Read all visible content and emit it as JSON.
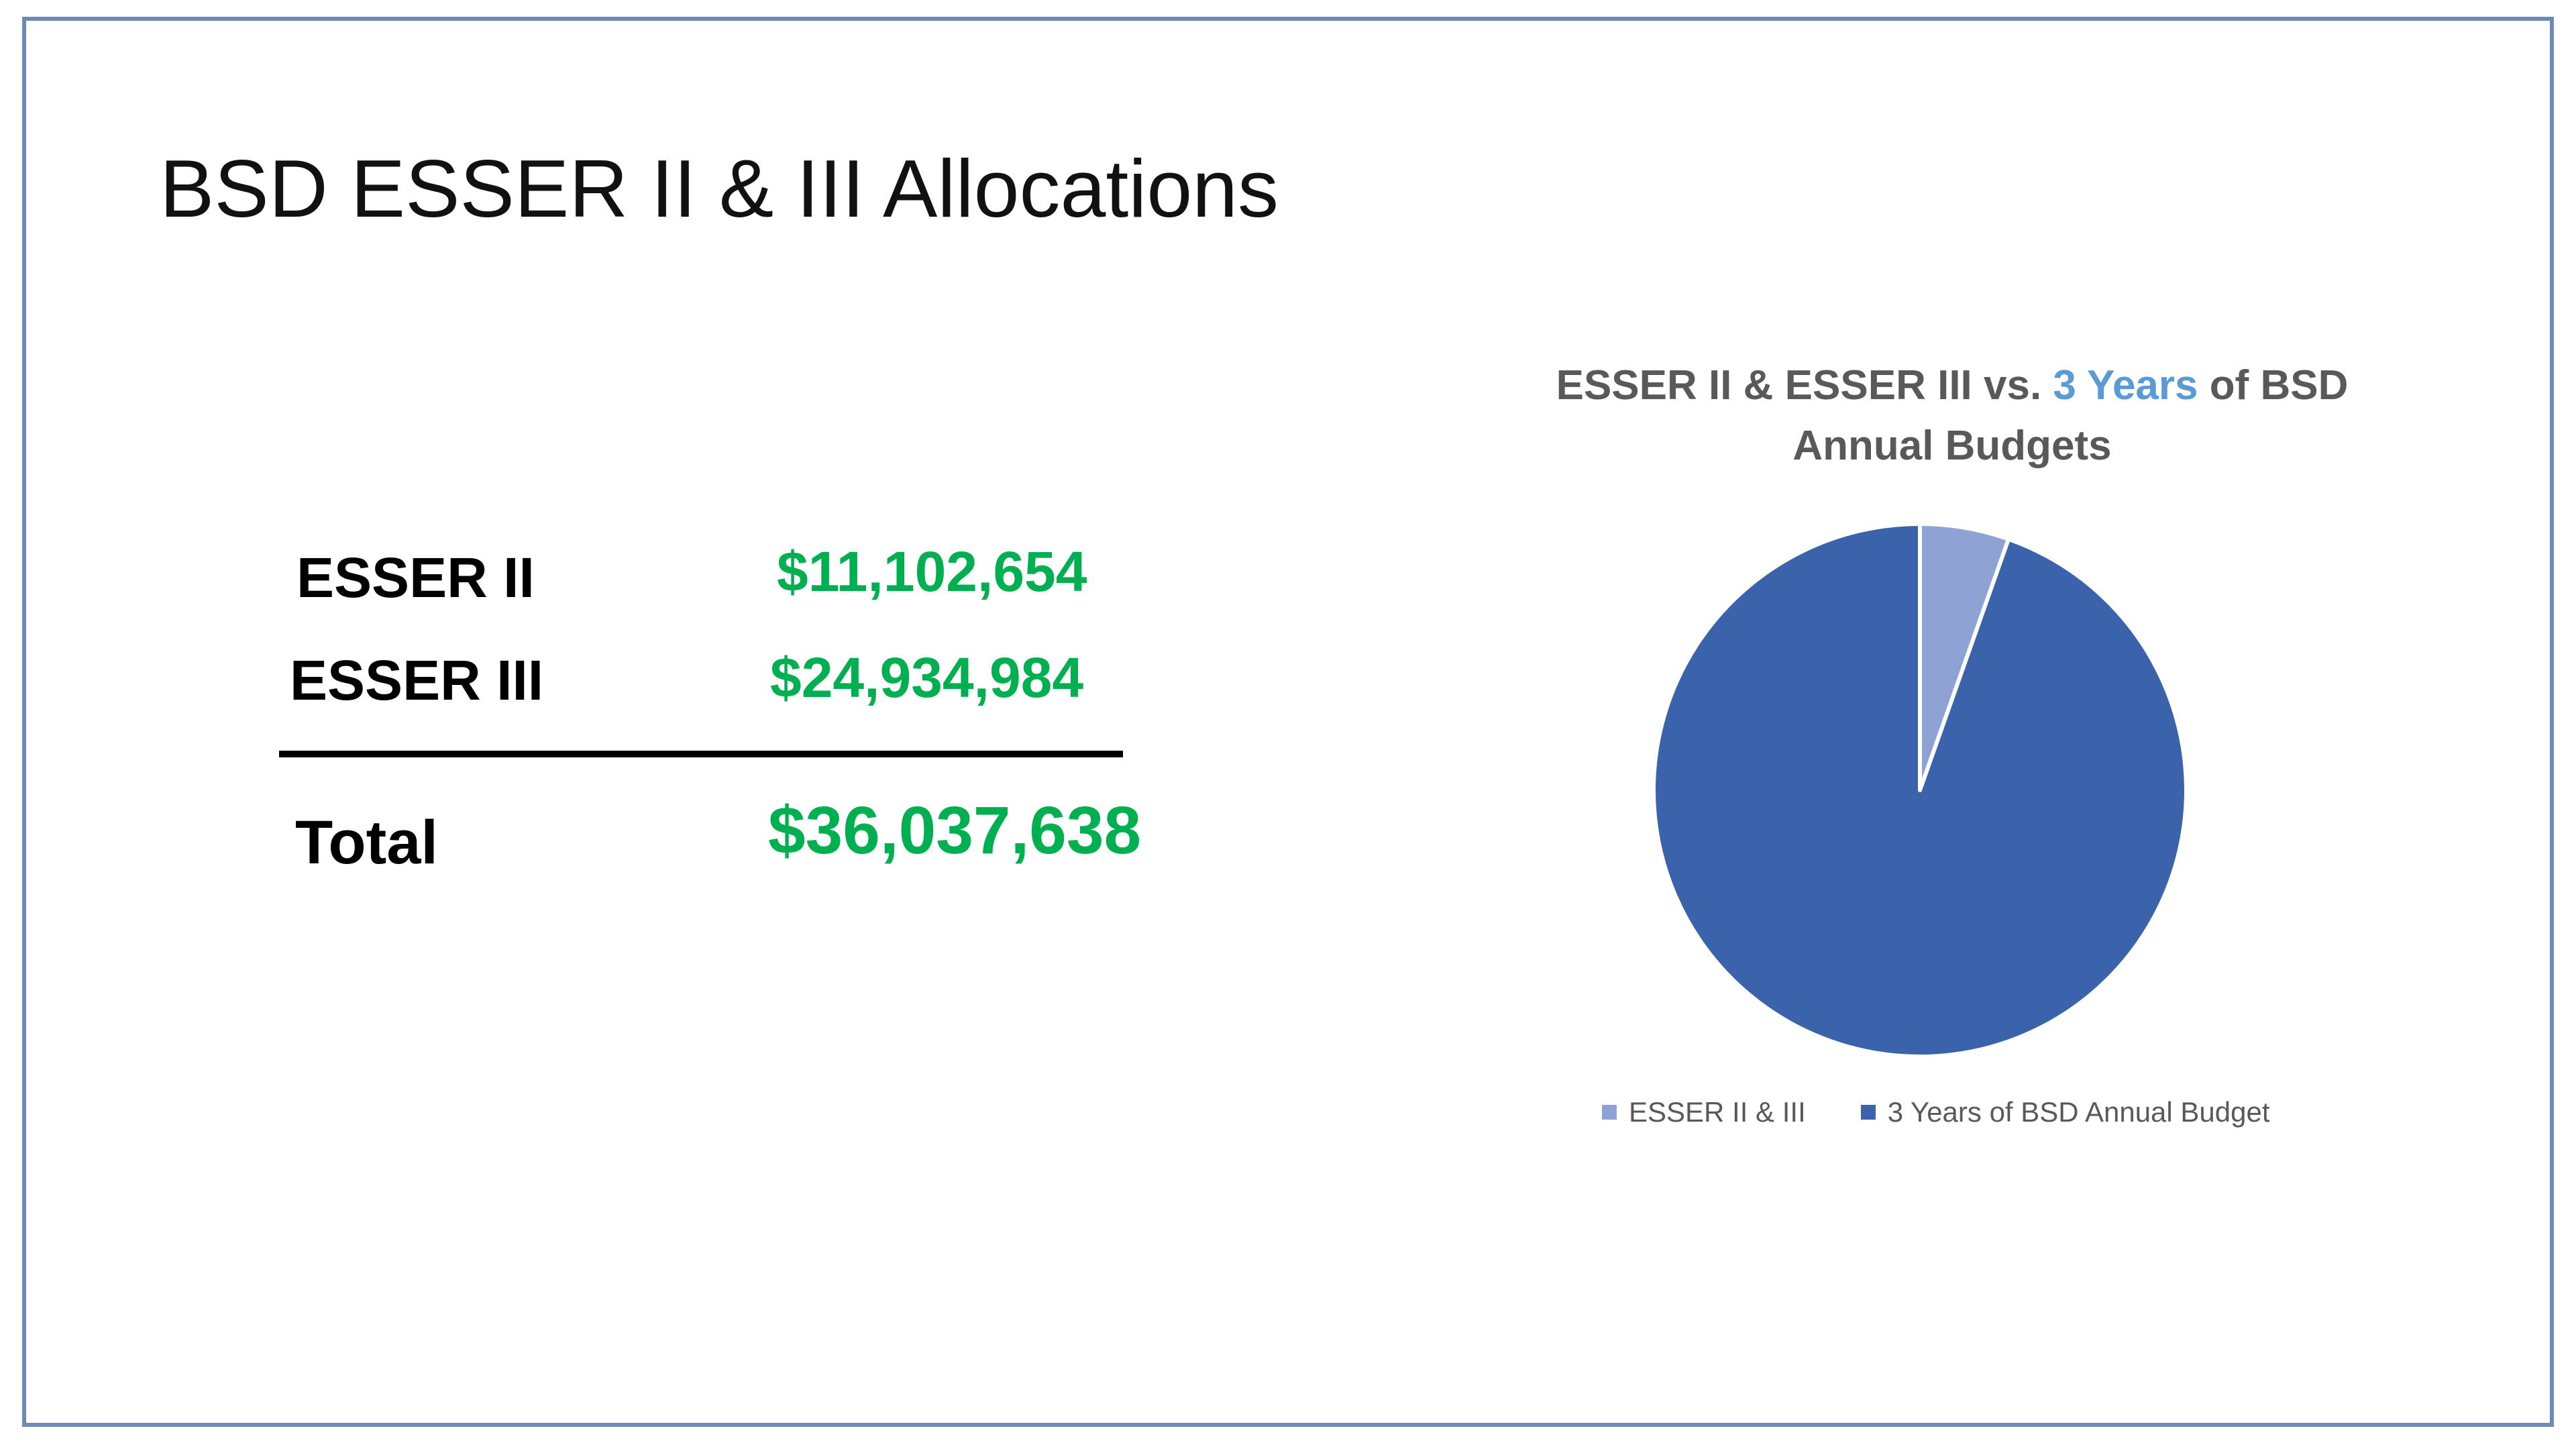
{
  "slide": {
    "title": "BSD ESSER II & III Allocations",
    "border_color": "#6e8bb5"
  },
  "allocations": {
    "value_color": "#00b050",
    "rows": [
      {
        "label": "ESSER II",
        "value": "$11,102,654"
      },
      {
        "label": "ESSER III",
        "value": "$24,934,984"
      }
    ],
    "total": {
      "label": "Total",
      "value": "$36,037,638"
    }
  },
  "chart_data": {
    "type": "pie",
    "title_parts": [
      {
        "text": "ESSER II & ESSER III vs. ",
        "color": "#595959"
      },
      {
        "text": "3 Years",
        "color": "#5b9bd5"
      },
      {
        "text": " of BSD Annual Budgets",
        "color": "#595959"
      }
    ],
    "slices": [
      {
        "name": "ESSER II & III",
        "percent": 5.4,
        "color": "#8fa2d4"
      },
      {
        "name": "3 Years of BSD Annual Budget",
        "percent": 94.6,
        "color": "#3b63ab"
      }
    ],
    "legend_position": "bottom"
  }
}
